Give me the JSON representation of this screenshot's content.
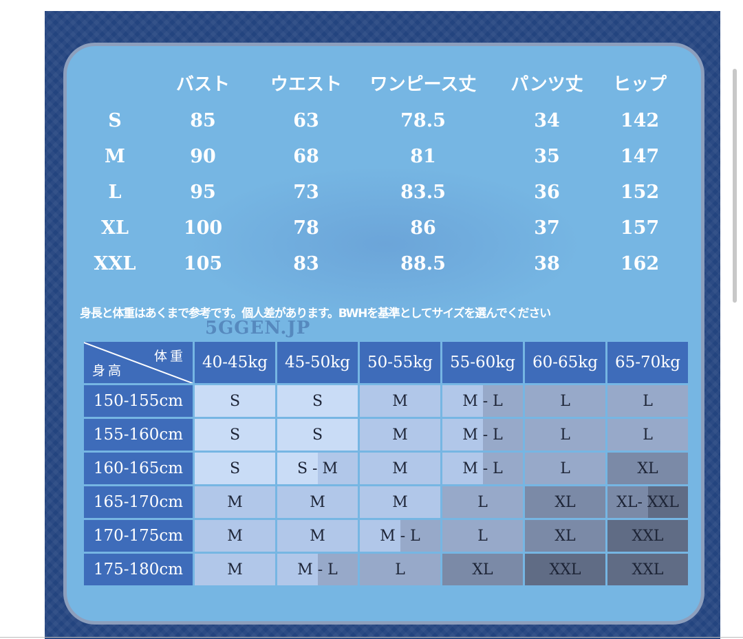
{
  "measurements": {
    "headers": [
      "バスト",
      "ウエスト",
      "ワンピース丈",
      "パンツ丈",
      "ヒップ"
    ],
    "rows": [
      {
        "size": "S",
        "values": [
          "85",
          "63",
          "78.5",
          "34",
          "142"
        ]
      },
      {
        "size": "M",
        "values": [
          "90",
          "68",
          "81",
          "35",
          "147"
        ]
      },
      {
        "size": "L",
        "values": [
          "95",
          "73",
          "83.5",
          "36",
          "152"
        ]
      },
      {
        "size": "XL",
        "values": [
          "100",
          "78",
          "86",
          "37",
          "157"
        ]
      },
      {
        "size": "XXL",
        "values": [
          "105",
          "83",
          "88.5",
          "38",
          "162"
        ]
      }
    ]
  },
  "watermark": "5GGEN.JP",
  "note": "身長と体重はあくまで参考です。個人差があります。BWHを基準としてサイズを選んでください",
  "size_guide": {
    "corner_weight": "体重",
    "corner_height": "身高",
    "weights": [
      "40-45kg",
      "45-50kg",
      "50-55kg",
      "55-60kg",
      "60-65kg",
      "65-70kg"
    ],
    "rows": [
      {
        "height": "150-155cm",
        "sizes": [
          "S",
          "S",
          "M",
          "M - L",
          "L",
          "L"
        ]
      },
      {
        "height": "155-160cm",
        "sizes": [
          "S",
          "S",
          "M",
          "M - L",
          "L",
          "L"
        ]
      },
      {
        "height": "160-165cm",
        "sizes": [
          "S",
          "S - M",
          "M",
          "M - L",
          "L",
          "XL"
        ]
      },
      {
        "height": "165-170cm",
        "sizes": [
          "M",
          "M",
          "M",
          "L",
          "XL",
          "XL- XXL"
        ]
      },
      {
        "height": "170-175cm",
        "sizes": [
          "M",
          "M",
          "M - L",
          "L",
          "XL",
          "XXL"
        ]
      },
      {
        "height": "175-180cm",
        "sizes": [
          "M",
          "M - L",
          "L",
          "XL",
          "XXL",
          "XXL"
        ]
      }
    ]
  },
  "colors": {
    "S": "#c9dcf6",
    "M": "#b1c7e9",
    "L": "#97a9c9",
    "XL": "#7b8aa7",
    "XXL": "#606c85",
    "header": "#3e6cba",
    "card": "#76b6e3",
    "frame": "#23447f"
  }
}
